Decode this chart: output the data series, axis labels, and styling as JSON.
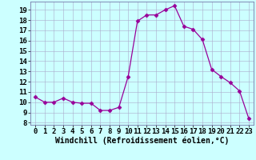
{
  "x": [
    0,
    1,
    2,
    3,
    4,
    5,
    6,
    7,
    8,
    9,
    10,
    11,
    12,
    13,
    14,
    15,
    16,
    17,
    18,
    19,
    20,
    21,
    22,
    23
  ],
  "y": [
    10.5,
    10.0,
    10.0,
    10.4,
    10.0,
    9.9,
    9.9,
    9.2,
    9.2,
    9.5,
    12.5,
    17.9,
    18.5,
    18.5,
    19.0,
    19.4,
    17.4,
    17.1,
    16.1,
    13.2,
    12.5,
    11.9,
    11.1,
    8.4
  ],
  "line_color": "#990099",
  "marker": "D",
  "marker_size": 2.5,
  "background_color": "#ccffff",
  "grid_color": "#aaaacc",
  "xlabel": "Windchill (Refroidissement éolien,°C)",
  "xlabel_fontsize": 7,
  "yticks": [
    8,
    9,
    10,
    11,
    12,
    13,
    14,
    15,
    16,
    17,
    18,
    19
  ],
  "xticks": [
    0,
    1,
    2,
    3,
    4,
    5,
    6,
    7,
    8,
    9,
    10,
    11,
    12,
    13,
    14,
    15,
    16,
    17,
    18,
    19,
    20,
    21,
    22,
    23
  ],
  "ylim": [
    7.8,
    19.8
  ],
  "xlim": [
    -0.5,
    23.5
  ],
  "tick_fontsize": 6.5
}
